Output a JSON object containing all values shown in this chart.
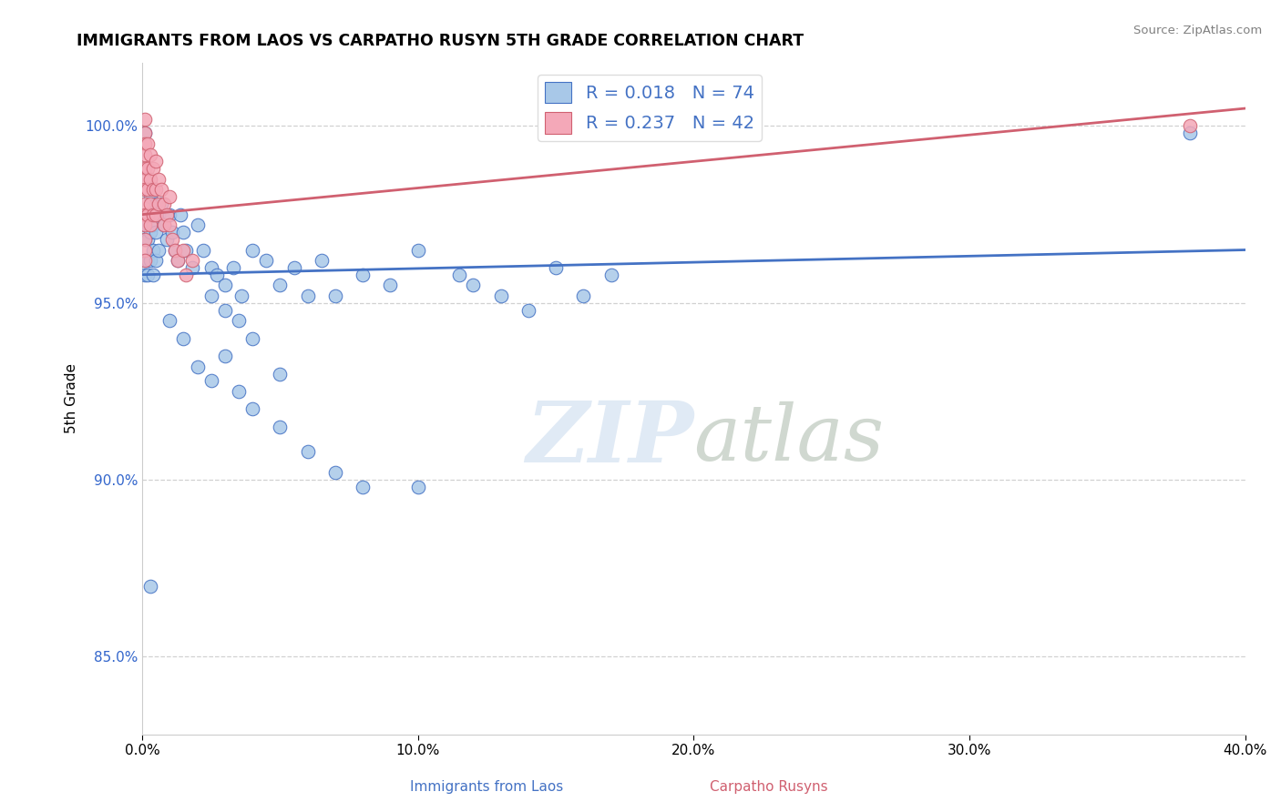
{
  "title": "IMMIGRANTS FROM LAOS VS CARPATHO RUSYN 5TH GRADE CORRELATION CHART",
  "source": "Source: ZipAtlas.com",
  "xlabel_blue": "Immigrants from Laos",
  "xlabel_pink": "Carpatho Rusyns",
  "ylabel": "5th Grade",
  "R_blue": 0.018,
  "N_blue": 74,
  "R_pink": 0.237,
  "N_pink": 42,
  "blue_color": "#a8c8e8",
  "pink_color": "#f4a8b8",
  "trend_blue": "#4472c4",
  "trend_pink": "#d06070",
  "legend_text_color": "#4472c4",
  "xmin": 0.0,
  "xmax": 0.4,
  "ymin": 0.828,
  "ymax": 1.018,
  "yticks": [
    0.85,
    0.9,
    0.95,
    1.0
  ],
  "ytick_labels": [
    "85.0%",
    "90.0%",
    "95.0%",
    "100.0%"
  ],
  "xticks": [
    0.0,
    0.1,
    0.2,
    0.3,
    0.4
  ],
  "xtick_labels": [
    "0.0%",
    "10.0%",
    "20.0%",
    "30.0%",
    "40.0%"
  ],
  "blue_trend_x": [
    0.0,
    0.4
  ],
  "blue_trend_y": [
    0.958,
    0.965
  ],
  "pink_trend_x": [
    0.0,
    0.4
  ],
  "pink_trend_y": [
    0.975,
    1.005
  ],
  "blue_x": [
    0.001,
    0.001,
    0.001,
    0.001,
    0.001,
    0.002,
    0.002,
    0.002,
    0.002,
    0.003,
    0.003,
    0.003,
    0.004,
    0.004,
    0.004,
    0.005,
    0.005,
    0.005,
    0.006,
    0.006,
    0.007,
    0.008,
    0.009,
    0.01,
    0.011,
    0.012,
    0.013,
    0.014,
    0.015,
    0.016,
    0.018,
    0.02,
    0.022,
    0.025,
    0.027,
    0.03,
    0.033,
    0.036,
    0.04,
    0.045,
    0.05,
    0.055,
    0.06,
    0.065,
    0.07,
    0.08,
    0.09,
    0.1,
    0.115,
    0.12,
    0.13,
    0.14,
    0.15,
    0.16,
    0.17,
    0.01,
    0.015,
    0.02,
    0.025,
    0.03,
    0.035,
    0.04,
    0.05,
    0.06,
    0.07,
    0.08,
    0.1,
    0.025,
    0.03,
    0.035,
    0.04,
    0.05,
    0.38,
    0.003
  ],
  "blue_y": [
    0.998,
    0.972,
    0.968,
    0.962,
    0.958,
    0.975,
    0.968,
    0.962,
    0.958,
    0.98,
    0.97,
    0.962,
    0.972,
    0.965,
    0.958,
    0.978,
    0.97,
    0.962,
    0.975,
    0.965,
    0.978,
    0.972,
    0.968,
    0.975,
    0.97,
    0.965,
    0.962,
    0.975,
    0.97,
    0.965,
    0.96,
    0.972,
    0.965,
    0.96,
    0.958,
    0.955,
    0.96,
    0.952,
    0.965,
    0.962,
    0.955,
    0.96,
    0.952,
    0.962,
    0.952,
    0.958,
    0.955,
    0.965,
    0.958,
    0.955,
    0.952,
    0.948,
    0.96,
    0.952,
    0.958,
    0.945,
    0.94,
    0.932,
    0.928,
    0.935,
    0.925,
    0.92,
    0.915,
    0.908,
    0.902,
    0.898,
    0.898,
    0.952,
    0.948,
    0.945,
    0.94,
    0.93,
    0.998,
    0.87
  ],
  "pink_x": [
    0.001,
    0.001,
    0.001,
    0.001,
    0.001,
    0.001,
    0.001,
    0.001,
    0.001,
    0.001,
    0.001,
    0.001,
    0.001,
    0.002,
    0.002,
    0.002,
    0.002,
    0.003,
    0.003,
    0.003,
    0.003,
    0.004,
    0.004,
    0.004,
    0.005,
    0.005,
    0.005,
    0.006,
    0.006,
    0.007,
    0.008,
    0.008,
    0.009,
    0.01,
    0.01,
    0.011,
    0.012,
    0.013,
    0.015,
    0.016,
    0.018,
    0.38
  ],
  "pink_y": [
    1.002,
    0.998,
    0.995,
    0.992,
    0.988,
    0.985,
    0.982,
    0.978,
    0.975,
    0.972,
    0.968,
    0.965,
    0.962,
    0.995,
    0.988,
    0.982,
    0.975,
    0.992,
    0.985,
    0.978,
    0.972,
    0.988,
    0.982,
    0.975,
    0.99,
    0.982,
    0.975,
    0.985,
    0.978,
    0.982,
    0.978,
    0.972,
    0.975,
    0.98,
    0.972,
    0.968,
    0.965,
    0.962,
    0.965,
    0.958,
    0.962,
    1.0
  ]
}
